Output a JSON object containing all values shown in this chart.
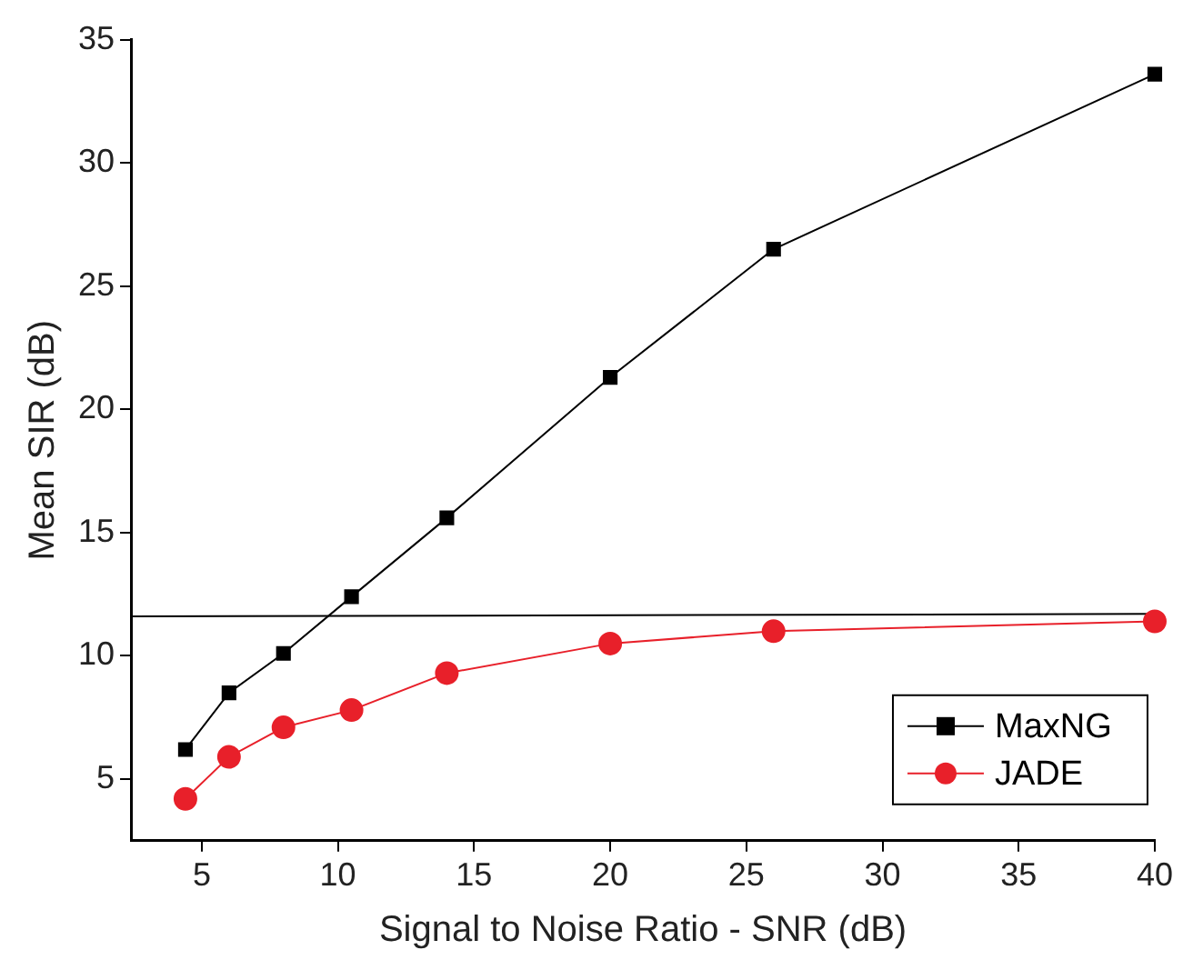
{
  "chart_data": {
    "type": "line",
    "xlabel": "Signal to Noise Ratio - SNR (dB)",
    "ylabel": "Mean SIR (dB)",
    "xlim": [
      2.4,
      40
    ],
    "xticks": [
      5,
      10,
      15,
      20,
      25,
      30,
      35,
      40
    ],
    "ylim": [
      2.5,
      35
    ],
    "yticks": [
      5,
      10,
      15,
      20,
      25,
      30,
      35
    ],
    "grid": false,
    "legend": "bottom right",
    "series": [
      {
        "name": "MaxNG",
        "color": "#000000",
        "marker": "square",
        "x": [
          4.4,
          6,
          8,
          10.5,
          14,
          20,
          26,
          40
        ],
        "values": [
          6.2,
          8.5,
          10.1,
          12.4,
          15.6,
          21.3,
          26.5,
          33.6
        ]
      },
      {
        "name": "JADE",
        "color": "#e8202a",
        "marker": "circle",
        "x": [
          4.4,
          6,
          8,
          10.5,
          14,
          20,
          26,
          40
        ],
        "values": [
          4.2,
          5.9,
          7.1,
          7.8,
          9.3,
          10.5,
          11.0,
          11.4
        ]
      },
      {
        "color": "#000000",
        "marker": "none",
        "x": [
          2.4,
          40
        ],
        "values": [
          11.6,
          11.7
        ]
      }
    ]
  }
}
